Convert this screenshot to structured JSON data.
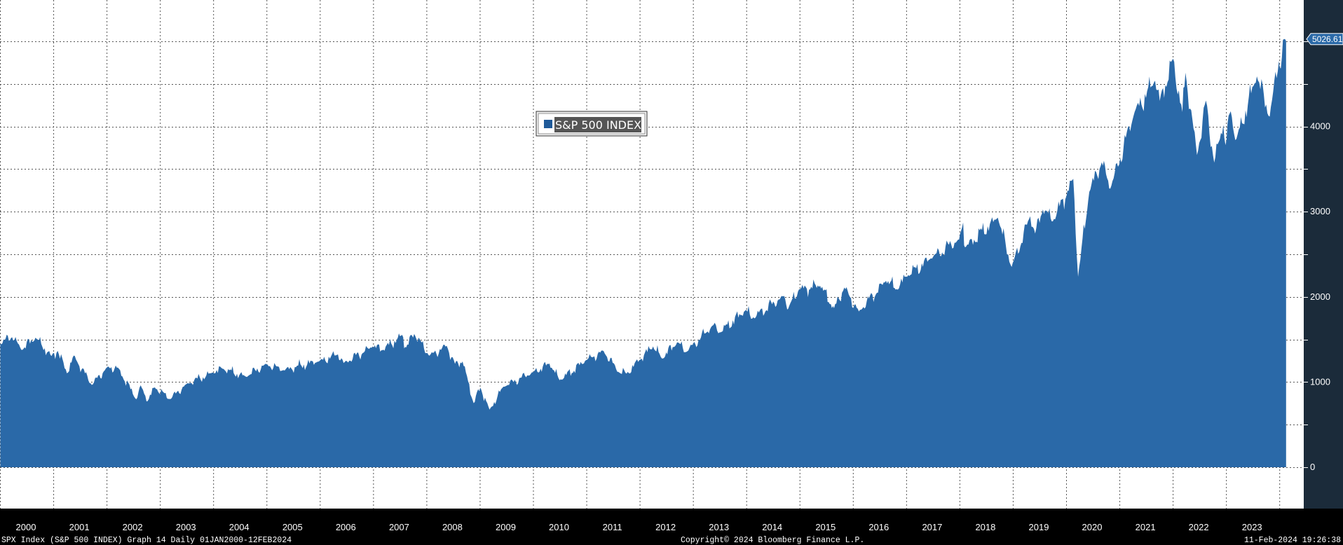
{
  "chart_data": {
    "type": "area",
    "series": [
      {
        "name": "S&P 500 INDEX",
        "color": "#2a69a8",
        "points": [
          [
            "2000-01-03",
            1455
          ],
          [
            "2000-03-24",
            1527
          ],
          [
            "2000-05-26",
            1379
          ],
          [
            "2000-09-01",
            1521
          ],
          [
            "2000-12-20",
            1305
          ],
          [
            "2001-01-31",
            1366
          ],
          [
            "2001-04-04",
            1103
          ],
          [
            "2001-05-21",
            1312
          ],
          [
            "2001-09-21",
            966
          ],
          [
            "2002-01-04",
            1173
          ],
          [
            "2002-03-19",
            1170
          ],
          [
            "2002-07-23",
            798
          ],
          [
            "2002-08-22",
            962
          ],
          [
            "2002-10-09",
            777
          ],
          [
            "2002-11-27",
            938
          ],
          [
            "2003-03-11",
            800
          ],
          [
            "2003-06-30",
            975
          ],
          [
            "2003-12-31",
            1112
          ],
          [
            "2004-03-05",
            1156
          ],
          [
            "2004-08-12",
            1064
          ],
          [
            "2004-12-31",
            1212
          ],
          [
            "2005-04-20",
            1137
          ],
          [
            "2005-12-30",
            1248
          ],
          [
            "2006-05-05",
            1325
          ],
          [
            "2006-06-13",
            1223
          ],
          [
            "2006-12-29",
            1418
          ],
          [
            "2007-03-05",
            1374
          ],
          [
            "2007-07-19",
            1553
          ],
          [
            "2007-08-15",
            1406
          ],
          [
            "2007-10-09",
            1565
          ],
          [
            "2008-01-22",
            1310
          ],
          [
            "2008-05-19",
            1426
          ],
          [
            "2008-07-15",
            1214
          ],
          [
            "2008-09-05",
            1242
          ],
          [
            "2008-11-20",
            752
          ],
          [
            "2009-01-06",
            934
          ],
          [
            "2009-03-09",
            676
          ],
          [
            "2009-06-12",
            946
          ],
          [
            "2009-12-31",
            1115
          ],
          [
            "2010-04-23",
            1217
          ],
          [
            "2010-07-02",
            1022
          ],
          [
            "2010-12-31",
            1258
          ],
          [
            "2011-04-29",
            1364
          ],
          [
            "2011-08-08",
            1119
          ],
          [
            "2011-10-03",
            1099
          ],
          [
            "2011-12-30",
            1258
          ],
          [
            "2012-04-02",
            1419
          ],
          [
            "2012-06-01",
            1278
          ],
          [
            "2012-09-14",
            1466
          ],
          [
            "2012-11-15",
            1353
          ],
          [
            "2013-05-21",
            1669
          ],
          [
            "2013-06-24",
            1573
          ],
          [
            "2013-12-31",
            1848
          ],
          [
            "2014-02-03",
            1742
          ],
          [
            "2014-09-18",
            2011
          ],
          [
            "2014-10-15",
            1862
          ],
          [
            "2014-12-29",
            2090
          ],
          [
            "2015-05-21",
            2131
          ],
          [
            "2015-08-25",
            1868
          ],
          [
            "2015-11-03",
            2109
          ],
          [
            "2016-02-11",
            1829
          ],
          [
            "2016-08-15",
            2190
          ],
          [
            "2016-11-04",
            2085
          ],
          [
            "2016-12-30",
            2239
          ],
          [
            "2017-06-19",
            2453
          ],
          [
            "2017-12-29",
            2674
          ],
          [
            "2018-01-26",
            2873
          ],
          [
            "2018-02-08",
            2581
          ],
          [
            "2018-09-20",
            2931
          ],
          [
            "2018-12-24",
            2351
          ],
          [
            "2019-04-30",
            2946
          ],
          [
            "2019-06-03",
            2744
          ],
          [
            "2019-07-26",
            3026
          ],
          [
            "2019-10-02",
            2888
          ],
          [
            "2020-02-19",
            3386
          ],
          [
            "2020-03-23",
            2237
          ],
          [
            "2020-06-08",
            3232
          ],
          [
            "2020-09-02",
            3580
          ],
          [
            "2020-10-30",
            3270
          ],
          [
            "2021-04-15",
            4170
          ],
          [
            "2021-09-02",
            4537
          ],
          [
            "2021-10-04",
            4300
          ],
          [
            "2022-01-03",
            4796
          ],
          [
            "2022-03-08",
            4170
          ],
          [
            "2022-03-29",
            4632
          ],
          [
            "2022-06-16",
            3666
          ],
          [
            "2022-08-16",
            4305
          ],
          [
            "2022-10-12",
            3577
          ],
          [
            "2022-12-13",
            4019
          ],
          [
            "2022-12-28",
            3783
          ],
          [
            "2023-02-02",
            4179
          ],
          [
            "2023-03-13",
            3855
          ],
          [
            "2023-07-31",
            4589
          ],
          [
            "2023-10-27",
            4117
          ],
          [
            "2023-12-29",
            4770
          ],
          [
            "2024-01-04",
            4688
          ],
          [
            "2024-02-09",
            5026.61
          ]
        ]
      }
    ],
    "x_tick_labels": [
      "2000",
      "2001",
      "2002",
      "2003",
      "2004",
      "2005",
      "2006",
      "2007",
      "2008",
      "2009",
      "2010",
      "2011",
      "2012",
      "2013",
      "2014",
      "2015",
      "2016",
      "2017",
      "2018",
      "2019",
      "2020",
      "2021",
      "2022",
      "2023"
    ],
    "y_tick_labels": [
      "0",
      "1000",
      "2000",
      "3000",
      "4000"
    ],
    "ylim": [
      0,
      5500
    ],
    "xlim": [
      "2000-01-01",
      "2024-02-12"
    ],
    "grid": true,
    "legend": {
      "label": "S&P 500 INDEX",
      "position": "upper-center"
    },
    "last_value_label": "5026.61",
    "footer": {
      "left": "SPX Index (S&P 500 INDEX) Graph 14  Daily 01JAN2000-12FEB2024",
      "center": "Copyright© 2024 Bloomberg Finance L.P.",
      "right": "11-Feb-2024 19:26:38"
    },
    "colors": {
      "plot_background": "#ffffff",
      "frame_background": "#000000",
      "grid": "#555555",
      "area_fill": "#2a69a8",
      "axis_panel": "#1b2b3a",
      "last_value_badge": "#2a69a8"
    }
  }
}
